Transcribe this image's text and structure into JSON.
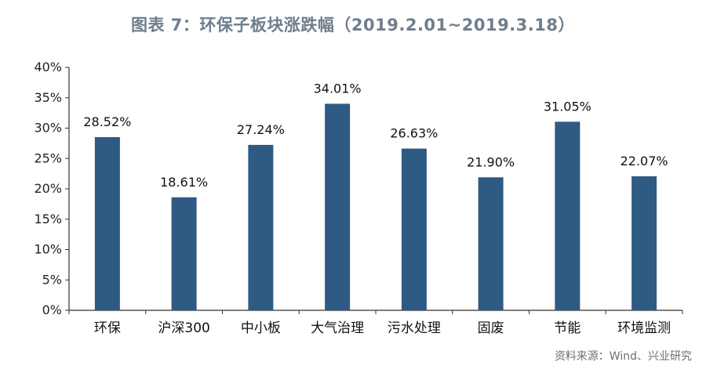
{
  "title": "图表 7：环保子板块涨跌幅（2019.2.01~2019.3.18）",
  "source": "资料来源：Wind、兴业研究",
  "colors": {
    "bar": "#2e5a84",
    "axis": "#333333",
    "title": "#6f7e8c"
  },
  "chart_data": {
    "type": "bar",
    "title": "图表 7：环保子板块涨跌幅（2019.2.01~2019.3.18）",
    "xlabel": "",
    "ylabel": "",
    "ylim": [
      0,
      40
    ],
    "yticks": [
      0,
      5,
      10,
      15,
      20,
      25,
      30,
      35,
      40
    ],
    "ytick_labels": [
      "0%",
      "5%",
      "10%",
      "15%",
      "20%",
      "25%",
      "30%",
      "35%",
      "40%"
    ],
    "categories": [
      "环保",
      "沪深300",
      "中小板",
      "大气治理",
      "污水处理",
      "固废",
      "节能",
      "环境监测"
    ],
    "values": [
      28.52,
      18.61,
      27.24,
      34.01,
      26.63,
      21.9,
      31.05,
      22.07
    ],
    "data_labels": [
      "28.52%",
      "18.61%",
      "27.24%",
      "34.01%",
      "26.63%",
      "21.90%",
      "31.05%",
      "22.07%"
    ],
    "grid": false,
    "legend": "none"
  }
}
